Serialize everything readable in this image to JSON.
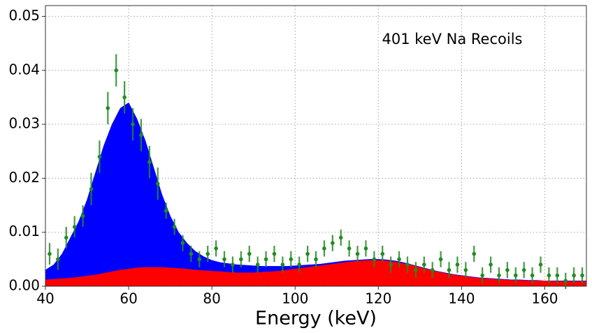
{
  "chart_data": {
    "type": "area",
    "annotation": "401 keV Na Recoils",
    "x_label": "Energy (keV)",
    "xlim": [
      40,
      170
    ],
    "ylim": [
      0,
      0.052
    ],
    "xticks": [
      40,
      60,
      80,
      100,
      120,
      140,
      160
    ],
    "yticks": [
      {
        "value": 0,
        "label": "0.00"
      },
      {
        "value": 0.01,
        "label": "0.01"
      },
      {
        "value": 0.02,
        "label": "0.02"
      },
      {
        "value": 0.03,
        "label": "0.03"
      },
      {
        "value": 0.04,
        "label": "0.04"
      },
      {
        "value": 0.05,
        "label": "0.05"
      }
    ],
    "grid": true,
    "x": [
      40,
      42,
      44,
      46,
      48,
      50,
      52,
      54,
      56,
      58,
      60,
      62,
      64,
      66,
      68,
      70,
      72,
      74,
      76,
      78,
      80,
      82,
      84,
      86,
      88,
      90,
      92,
      94,
      96,
      98,
      100,
      102,
      104,
      106,
      108,
      110,
      112,
      114,
      116,
      118,
      120,
      122,
      124,
      126,
      128,
      130,
      132,
      134,
      136,
      138,
      140,
      142,
      144,
      146,
      148,
      150,
      152,
      154,
      156,
      158,
      160,
      162,
      164,
      166,
      168,
      170
    ],
    "series": [
      {
        "color": "#0000ff",
        "values": [
          0.003,
          0.004,
          0.006,
          0.009,
          0.012,
          0.016,
          0.021,
          0.026,
          0.03,
          0.033,
          0.034,
          0.031,
          0.027,
          0.022,
          0.017,
          0.013,
          0.01,
          0.008,
          0.0065,
          0.0055,
          0.0048,
          0.0044,
          0.0042,
          0.004,
          0.0039,
          0.0038,
          0.0037,
          0.0037,
          0.0037,
          0.0037,
          0.0038,
          0.0039,
          0.004,
          0.0041,
          0.0043,
          0.0045,
          0.0047,
          0.0048,
          0.0049,
          0.005,
          0.005,
          0.0049,
          0.0047,
          0.0044,
          0.004,
          0.0036,
          0.0032,
          0.0028,
          0.0025,
          0.0022,
          0.002,
          0.0018,
          0.0016,
          0.0015,
          0.0014,
          0.0013,
          0.0012,
          0.0012,
          0.0011,
          0.0011,
          0.001,
          0.001,
          0.001,
          0.001,
          0.001,
          0.001
        ]
      },
      {
        "color": "#ff0000",
        "values": [
          0.0012,
          0.0013,
          0.0014,
          0.0015,
          0.0017,
          0.0019,
          0.0021,
          0.0024,
          0.0027,
          0.003,
          0.0032,
          0.0034,
          0.0035,
          0.0035,
          0.0035,
          0.0034,
          0.0033,
          0.0032,
          0.003,
          0.0029,
          0.0028,
          0.0027,
          0.0026,
          0.0025,
          0.0025,
          0.0025,
          0.0026,
          0.0027,
          0.0028,
          0.003,
          0.0032,
          0.0034,
          0.0036,
          0.0038,
          0.004,
          0.0042,
          0.0044,
          0.0046,
          0.0047,
          0.0048,
          0.0048,
          0.0047,
          0.0045,
          0.0042,
          0.0039,
          0.0035,
          0.0031,
          0.0027,
          0.0024,
          0.0021,
          0.0019,
          0.0017,
          0.0015,
          0.0014,
          0.0013,
          0.0012,
          0.0011,
          0.0011,
          0.001,
          0.001,
          0.001,
          0.0009,
          0.0009,
          0.0009,
          0.0009,
          0.0009
        ]
      },
      {
        "type": "errorbar",
        "color": "#228b22",
        "x": [
          41,
          43,
          45,
          47,
          49,
          51,
          53,
          55,
          57,
          59,
          61,
          63,
          65,
          67,
          69,
          71,
          73,
          75,
          77,
          79,
          81,
          83,
          85,
          87,
          89,
          91,
          93,
          95,
          97,
          99,
          101,
          103,
          105,
          107,
          109,
          111,
          113,
          115,
          117,
          119,
          121,
          123,
          125,
          127,
          129,
          131,
          133,
          135,
          137,
          139,
          141,
          143,
          145,
          147,
          149,
          151,
          153,
          155,
          157,
          159,
          161,
          163,
          165,
          167,
          169
        ],
        "values": [
          0.006,
          0.005,
          0.009,
          0.011,
          0.013,
          0.018,
          0.024,
          0.033,
          0.04,
          0.035,
          0.03,
          0.028,
          0.023,
          0.019,
          0.014,
          0.011,
          0.008,
          0.006,
          0.005,
          0.006,
          0.007,
          0.005,
          0.004,
          0.005,
          0.006,
          0.004,
          0.005,
          0.006,
          0.004,
          0.005,
          0.004,
          0.006,
          0.005,
          0.007,
          0.008,
          0.009,
          0.007,
          0.006,
          0.007,
          0.005,
          0.006,
          0.004,
          0.005,
          0.004,
          0.003,
          0.004,
          0.003,
          0.005,
          0.003,
          0.004,
          0.003,
          0.006,
          0.002,
          0.004,
          0.002,
          0.003,
          0.002,
          0.003,
          0.002,
          0.004,
          0.002,
          0.002,
          0.001,
          0.002,
          0.002
        ],
        "errors": [
          0.002,
          0.002,
          0.002,
          0.002,
          0.002,
          0.003,
          0.003,
          0.003,
          0.003,
          0.003,
          0.003,
          0.003,
          0.003,
          0.003,
          0.0015,
          0.0015,
          0.0015,
          0.0015,
          0.0015,
          0.0015,
          0.0015,
          0.0015,
          0.0015,
          0.0015,
          0.0015,
          0.0015,
          0.0015,
          0.0015,
          0.0015,
          0.0015,
          0.0015,
          0.0015,
          0.0015,
          0.0015,
          0.0015,
          0.0015,
          0.0015,
          0.0015,
          0.0015,
          0.0015,
          0.0015,
          0.0015,
          0.0015,
          0.0015,
          0.0015,
          0.0015,
          0.0015,
          0.0015,
          0.0015,
          0.0015,
          0.0015,
          0.0015,
          0.0015,
          0.0015,
          0.0015,
          0.0015,
          0.0015,
          0.0015,
          0.0015,
          0.0015,
          0.0015,
          0.0015,
          0.0015,
          0.0015,
          0.0015
        ]
      }
    ]
  }
}
